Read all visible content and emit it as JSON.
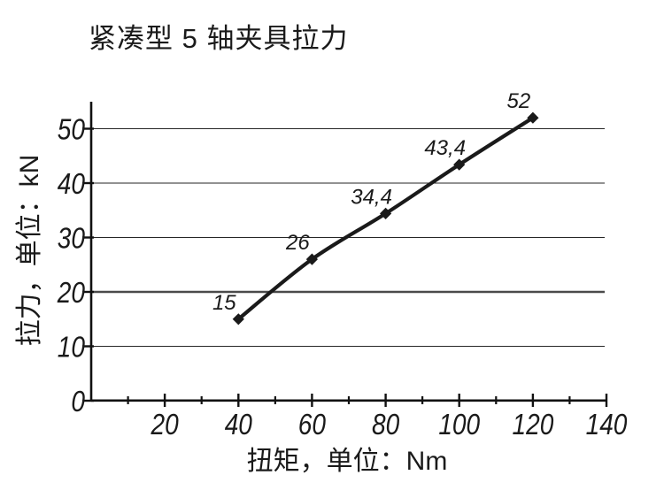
{
  "chart_data": {
    "type": "line",
    "title": "紧凑型 5 轴夹具拉力",
    "xlabel": "扭矩，单位：Nm",
    "ylabel": "拉力，单位：kN",
    "x": [
      40,
      60,
      80,
      100,
      120
    ],
    "y": [
      15,
      26,
      34.4,
      43.4,
      52
    ],
    "point_labels": [
      "15",
      "26",
      "34,4",
      "43,4",
      "52"
    ],
    "xlim": [
      0,
      140
    ],
    "ylim": [
      0,
      50
    ],
    "x_major_ticks": [
      20,
      40,
      60,
      80,
      100,
      120,
      140
    ],
    "x_minor_ticks": [
      10,
      30,
      50,
      70,
      90,
      110,
      130
    ],
    "y_ticks": [
      0,
      10,
      20,
      30,
      40,
      50
    ],
    "gridlines_y": [
      10,
      20,
      30,
      40,
      50
    ],
    "emphasized_gridline_y": 20,
    "grid": "horizontal",
    "legend": "none",
    "marker": "diamond",
    "line_color": "#1a1a1a",
    "axis_color": "#111111",
    "grid_color": "#262626",
    "emphasized_grid_color": "#4a4a4a",
    "text_color": "#1a1a1a",
    "background_color": "#ffffff"
  }
}
